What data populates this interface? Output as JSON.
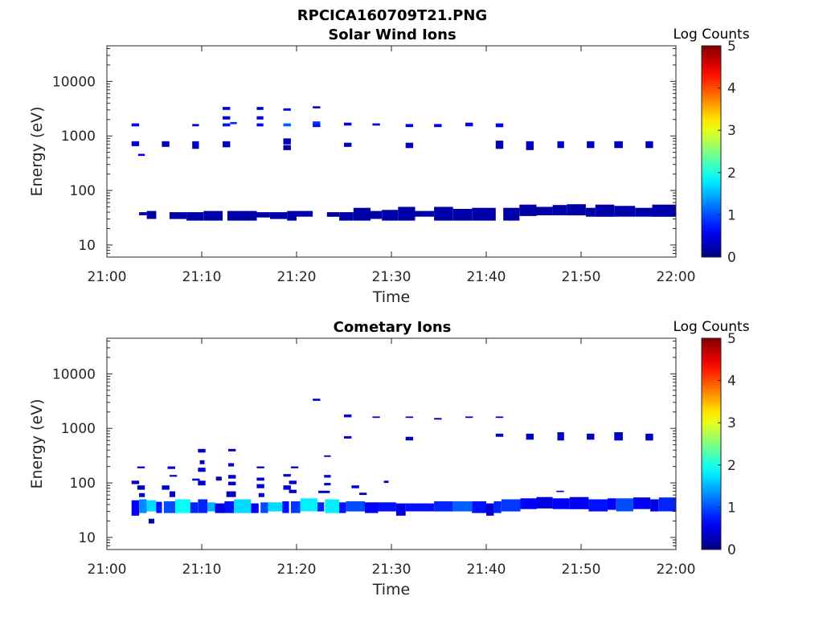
{
  "figure_title": "RPCICA160709T21.PNG",
  "chart_data": [
    {
      "type": "heatmap",
      "title": "Solar Wind Ions",
      "xlabel": "Time",
      "ylabel": "Energy (eV)",
      "x_ticks": [
        "21:00",
        "21:10",
        "21:20",
        "21:30",
        "21:40",
        "21:50",
        "22:00"
      ],
      "x_range_minutes": [
        0,
        60
      ],
      "y_scale": "log",
      "y_ticks": [
        10,
        100,
        1000,
        10000
      ],
      "y_range": [
        6,
        45000
      ],
      "colorbar": {
        "label": "Log Counts",
        "ticks": [
          0,
          1,
          2,
          3,
          4,
          5
        ],
        "range": [
          0,
          5
        ],
        "colormap": "jet"
      },
      "cells": [
        [
          2.6,
          3.4,
          1500,
          1700,
          0.5
        ],
        [
          2.6,
          3.4,
          650,
          800,
          0.4
        ],
        [
          3.3,
          4.0,
          430,
          470,
          0.5
        ],
        [
          3.4,
          4.2,
          35,
          40,
          0.2
        ],
        [
          4.2,
          5.2,
          30,
          42,
          0.2
        ],
        [
          5.8,
          6.6,
          630,
          800,
          0.3
        ],
        [
          6.6,
          8.4,
          30,
          40,
          0.2
        ],
        [
          8.4,
          10.2,
          28,
          40,
          0.2
        ],
        [
          9.0,
          9.7,
          1500,
          1650,
          0.4
        ],
        [
          9.0,
          9.7,
          580,
          800,
          0.3
        ],
        [
          10.2,
          12.2,
          28,
          42,
          0.2
        ],
        [
          12.2,
          13.0,
          3000,
          3400,
          0.5
        ],
        [
          12.2,
          13.0,
          2000,
          2300,
          0.5
        ],
        [
          12.2,
          13.0,
          1500,
          1700,
          0.7
        ],
        [
          12.2,
          13.0,
          620,
          800,
          0.3
        ],
        [
          13.0,
          13.7,
          1650,
          1800,
          0.8
        ],
        [
          12.7,
          15.8,
          28,
          42,
          0.2
        ],
        [
          15.8,
          16.5,
          3000,
          3400,
          0.5
        ],
        [
          15.8,
          16.5,
          2000,
          2300,
          0.5
        ],
        [
          15.8,
          16.5,
          1500,
          1700,
          0.6
        ],
        [
          15.8,
          17.2,
          32,
          40,
          0.2
        ],
        [
          17.2,
          19.0,
          30,
          40,
          0.2
        ],
        [
          18.6,
          19.4,
          2900,
          3200,
          0.5
        ],
        [
          18.6,
          19.4,
          1500,
          1700,
          1.1
        ],
        [
          18.6,
          19.4,
          700,
          900,
          0.3
        ],
        [
          18.6,
          19.4,
          550,
          680,
          0.2
        ],
        [
          19.0,
          20.0,
          28,
          42,
          0.2
        ],
        [
          21.7,
          22.5,
          3200,
          3500,
          0.4
        ],
        [
          21.7,
          22.5,
          1650,
          1850,
          0.9
        ],
        [
          21.7,
          22.5,
          1450,
          1650,
          0.7
        ],
        [
          20.0,
          21.7,
          33,
          42,
          0.2
        ],
        [
          23.2,
          24.5,
          33,
          40,
          0.2
        ],
        [
          24.5,
          26.0,
          28,
          40,
          0.2
        ],
        [
          25.0,
          25.8,
          1550,
          1750,
          0.5
        ],
        [
          25.0,
          25.8,
          630,
          750,
          0.3
        ],
        [
          26.0,
          27.8,
          28,
          48,
          0.2
        ],
        [
          27.8,
          29.0,
          30,
          42,
          0.2
        ],
        [
          28.0,
          28.8,
          1550,
          1700,
          0.5
        ],
        [
          29.0,
          30.7,
          28,
          44,
          0.2
        ],
        [
          30.7,
          32.5,
          28,
          50,
          0.2
        ],
        [
          31.5,
          32.3,
          1450,
          1650,
          0.5
        ],
        [
          31.5,
          32.3,
          600,
          750,
          0.3
        ],
        [
          32.5,
          34.5,
          33,
          42,
          0.2
        ],
        [
          34.5,
          35.3,
          1450,
          1650,
          0.5
        ],
        [
          34.5,
          36.5,
          28,
          50,
          0.2
        ],
        [
          36.5,
          38.5,
          28,
          46,
          0.2
        ],
        [
          37.8,
          38.6,
          1500,
          1750,
          0.5
        ],
        [
          38.5,
          41.0,
          28,
          48,
          0.2
        ],
        [
          41.0,
          41.8,
          1450,
          1700,
          0.5
        ],
        [
          41.0,
          41.8,
          580,
          820,
          0.3
        ],
        [
          41.8,
          43.5,
          28,
          48,
          0.2
        ],
        [
          43.5,
          45.3,
          34,
          55,
          0.2
        ],
        [
          44.2,
          45.0,
          550,
          800,
          0.3
        ],
        [
          45.3,
          47.0,
          35,
          50,
          0.2
        ],
        [
          47.0,
          48.5,
          35,
          54,
          0.2
        ],
        [
          47.5,
          48.2,
          600,
          800,
          0.3
        ],
        [
          48.5,
          50.5,
          35,
          56,
          0.2
        ],
        [
          50.5,
          51.5,
          33,
          48,
          0.2
        ],
        [
          50.6,
          51.4,
          600,
          800,
          0.3
        ],
        [
          51.5,
          53.5,
          33,
          55,
          0.2
        ],
        [
          53.5,
          54.4,
          600,
          800,
          0.3
        ],
        [
          53.5,
          55.7,
          33,
          52,
          0.2
        ],
        [
          55.7,
          57.5,
          33,
          48,
          0.2
        ],
        [
          56.8,
          57.6,
          600,
          800,
          0.3
        ],
        [
          57.5,
          60.0,
          33,
          55,
          0.2
        ]
      ]
    },
    {
      "type": "heatmap",
      "title": "Cometary Ions",
      "xlabel": "Time",
      "ylabel": "Energy (eV)",
      "x_ticks": [
        "21:00",
        "21:10",
        "21:20",
        "21:30",
        "21:40",
        "21:50",
        "22:00"
      ],
      "x_range_minutes": [
        0,
        60
      ],
      "y_scale": "log",
      "y_ticks": [
        10,
        100,
        1000,
        10000
      ],
      "y_range": [
        6,
        45000
      ],
      "colorbar": {
        "label": "Log Counts",
        "ticks": [
          0,
          1,
          2,
          3,
          4,
          5
        ],
        "range": [
          0,
          5
        ],
        "colormap": "jet"
      },
      "cells": [
        [
          2.6,
          3.4,
          95,
          110,
          0.3
        ],
        [
          3.2,
          4.0,
          185,
          200,
          0.4
        ],
        [
          3.2,
          4.0,
          75,
          90,
          0.3
        ],
        [
          3.4,
          4.0,
          55,
          65,
          0.3
        ],
        [
          2.6,
          3.4,
          25,
          48,
          0.6
        ],
        [
          3.4,
          4.2,
          28,
          50,
          1.3
        ],
        [
          4.2,
          5.2,
          30,
          48,
          1.7
        ],
        [
          4.4,
          5.0,
          18,
          22,
          0.2
        ],
        [
          5.2,
          5.8,
          28,
          45,
          0.7
        ],
        [
          5.8,
          6.6,
          75,
          90,
          0.4
        ],
        [
          6.4,
          7.2,
          180,
          200,
          0.4
        ],
        [
          6.6,
          7.4,
          130,
          140,
          0.4
        ],
        [
          6.6,
          7.2,
          55,
          70,
          0.3
        ],
        [
          6.0,
          7.2,
          28,
          46,
          1.0
        ],
        [
          7.2,
          8.8,
          28,
          50,
          1.9
        ],
        [
          8.8,
          9.6,
          28,
          44,
          0.8
        ],
        [
          9.0,
          9.8,
          110,
          120,
          0.4
        ],
        [
          9.6,
          10.4,
          360,
          420,
          0.3
        ],
        [
          9.8,
          10.3,
          220,
          260,
          0.3
        ],
        [
          9.6,
          10.4,
          160,
          190,
          0.3
        ],
        [
          9.6,
          10.4,
          90,
          110,
          0.3
        ],
        [
          9.6,
          10.6,
          28,
          50,
          0.8
        ],
        [
          10.6,
          11.4,
          30,
          44,
          1.5
        ],
        [
          11.4,
          12.5,
          28,
          42,
          0.5
        ],
        [
          11.5,
          12.1,
          110,
          130,
          0.3
        ],
        [
          12.8,
          13.6,
          380,
          420,
          0.3
        ],
        [
          12.8,
          13.4,
          200,
          230,
          0.4
        ],
        [
          12.8,
          13.6,
          120,
          140,
          0.4
        ],
        [
          12.8,
          13.6,
          90,
          105,
          0.4
        ],
        [
          12.6,
          13.6,
          55,
          70,
          0.3
        ],
        [
          12.4,
          13.4,
          28,
          46,
          0.7
        ],
        [
          13.4,
          15.2,
          28,
          50,
          1.7
        ],
        [
          15.2,
          16.0,
          28,
          42,
          0.6
        ],
        [
          15.8,
          16.6,
          185,
          200,
          0.4
        ],
        [
          15.8,
          16.6,
          110,
          125,
          0.4
        ],
        [
          15.8,
          16.6,
          80,
          95,
          0.4
        ],
        [
          16.0,
          16.6,
          55,
          65,
          0.3
        ],
        [
          16.2,
          17.0,
          28,
          44,
          1.0
        ],
        [
          17.0,
          18.5,
          30,
          44,
          1.7
        ],
        [
          18.5,
          19.2,
          28,
          46,
          0.7
        ],
        [
          18.6,
          19.4,
          130,
          145,
          0.4
        ],
        [
          18.6,
          19.4,
          75,
          90,
          0.4
        ],
        [
          19.4,
          20.2,
          185,
          200,
          0.4
        ],
        [
          19.2,
          20.0,
          95,
          110,
          0.4
        ],
        [
          19.2,
          20.0,
          65,
          75,
          0.3
        ],
        [
          19.4,
          20.4,
          28,
          46,
          0.9
        ],
        [
          20.4,
          22.2,
          30,
          52,
          1.8
        ],
        [
          21.7,
          22.5,
          3200,
          3500,
          0.3
        ],
        [
          22.2,
          22.9,
          30,
          44,
          0.8
        ],
        [
          22.3,
          23.5,
          65,
          72,
          0.4
        ],
        [
          22.9,
          23.6,
          300,
          320,
          0.4
        ],
        [
          22.9,
          23.6,
          125,
          140,
          0.4
        ],
        [
          22.9,
          23.6,
          90,
          100,
          0.4
        ],
        [
          23.0,
          24.5,
          28,
          50,
          1.8
        ],
        [
          24.5,
          25.2,
          28,
          44,
          0.7
        ],
        [
          25.0,
          25.8,
          1600,
          1800,
          0.5
        ],
        [
          25.0,
          25.8,
          650,
          720,
          0.4
        ],
        [
          25.8,
          26.6,
          80,
          90,
          0.4
        ],
        [
          25.2,
          27.2,
          30,
          46,
          1.0
        ],
        [
          26.6,
          27.4,
          60,
          66,
          0.3
        ],
        [
          27.2,
          28.6,
          28,
          44,
          0.6
        ],
        [
          28.0,
          28.8,
          1550,
          1650,
          0.4
        ],
        [
          29.2,
          29.7,
          100,
          110,
          0.3
        ],
        [
          28.6,
          30.5,
          30,
          44,
          0.7
        ],
        [
          30.5,
          31.5,
          25,
          42,
          0.5
        ],
        [
          31.5,
          32.3,
          1550,
          1650,
          0.4
        ],
        [
          31.5,
          32.3,
          600,
          700,
          0.3
        ],
        [
          31.5,
          34.5,
          30,
          42,
          0.7
        ],
        [
          34.5,
          35.3,
          1450,
          1550,
          0.4
        ],
        [
          34.5,
          36.5,
          30,
          46,
          0.8
        ],
        [
          36.5,
          38.5,
          30,
          46,
          1.1
        ],
        [
          37.8,
          38.6,
          1550,
          1650,
          0.4
        ],
        [
          38.5,
          40.0,
          28,
          46,
          0.7
        ],
        [
          40.0,
          40.8,
          25,
          42,
          0.4
        ],
        [
          40.8,
          41.6,
          28,
          46,
          0.8
        ],
        [
          41.0,
          41.8,
          1550,
          1650,
          0.4
        ],
        [
          41.0,
          41.8,
          700,
          800,
          0.3
        ],
        [
          41.6,
          43.6,
          30,
          50,
          0.9
        ],
        [
          43.6,
          45.3,
          33,
          52,
          0.6
        ],
        [
          44.2,
          45.0,
          620,
          800,
          0.3
        ],
        [
          45.3,
          47.0,
          34,
          55,
          0.5
        ],
        [
          47.4,
          48.2,
          68,
          72,
          0.4
        ],
        [
          47.0,
          48.8,
          33,
          52,
          0.6
        ],
        [
          47.5,
          48.2,
          600,
          850,
          0.3
        ],
        [
          48.8,
          50.8,
          33,
          55,
          0.6
        ],
        [
          50.6,
          51.4,
          620,
          800,
          0.3
        ],
        [
          50.8,
          52.8,
          30,
          50,
          0.7
        ],
        [
          52.8,
          53.7,
          32,
          52,
          0.6
        ],
        [
          53.5,
          54.4,
          600,
          850,
          0.3
        ],
        [
          53.7,
          55.5,
          30,
          52,
          1.0
        ],
        [
          55.5,
          57.3,
          33,
          54,
          0.6
        ],
        [
          56.8,
          57.6,
          600,
          800,
          0.3
        ],
        [
          57.3,
          58.2,
          30,
          50,
          0.5
        ],
        [
          58.2,
          60.0,
          30,
          54,
          0.8
        ]
      ]
    }
  ]
}
